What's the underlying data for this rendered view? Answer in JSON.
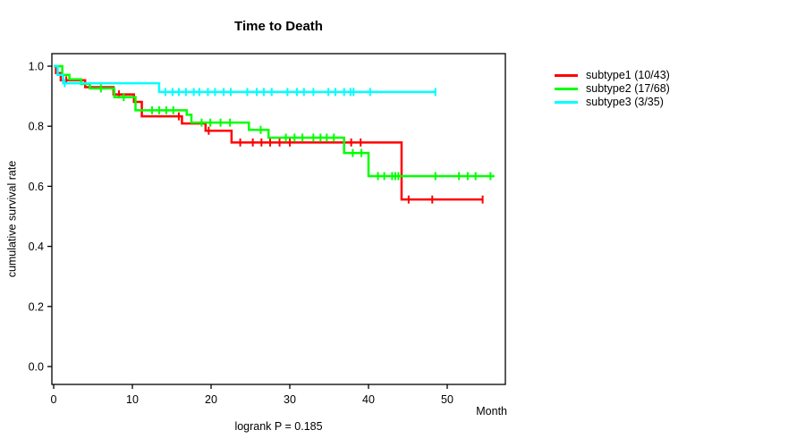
{
  "title": "Time to Death",
  "chart_data": {
    "type": "line",
    "subtype": "kaplan-meier-step-curves",
    "title": "Time to Death",
    "xlabel": "Month",
    "ylabel": "cumulative survival rate",
    "annotation": "logrank P = 0.185",
    "xlim": [
      0,
      57
    ],
    "ylim": [
      0.0,
      1.0
    ],
    "xticks": [
      "0",
      "10",
      "20",
      "30",
      "40",
      "50"
    ],
    "xtick_values": [
      0,
      10,
      20,
      30,
      40,
      50
    ],
    "yticks": [
      "0.0",
      "0.2",
      "0.4",
      "0.6",
      "0.8",
      "1.0"
    ],
    "ytick_values": [
      0.0,
      0.2,
      0.4,
      0.6,
      0.8,
      1.0
    ],
    "grid": false,
    "legend_position": "right-outside",
    "series": [
      {
        "name": "subtype1 (10/43)",
        "color": "#FF0000",
        "n": 43,
        "events": 10,
        "steps": [
          [
            0,
            1.0
          ],
          [
            0.3,
            0.977
          ],
          [
            0.9,
            0.953
          ],
          [
            4.0,
            0.93
          ],
          [
            7.6,
            0.906
          ],
          [
            10.2,
            0.881
          ],
          [
            11.2,
            0.833
          ],
          [
            16.3,
            0.809
          ],
          [
            19.3,
            0.785
          ],
          [
            22.6,
            0.746
          ],
          [
            44.2,
            0.556
          ]
        ],
        "end_time": 54.5,
        "censor_times": [
          1.6,
          8.3,
          15.9,
          19.7,
          23.7,
          25.3,
          26.4,
          27.5,
          28.7,
          30.0,
          37.8,
          39.0,
          45.1,
          48.1,
          54.5
        ]
      },
      {
        "name": "subtype2 (17/68)",
        "color": "#00FF00",
        "n": 68,
        "events": 17,
        "steps": [
          [
            0,
            1.0
          ],
          [
            1.1,
            0.971
          ],
          [
            2.0,
            0.956
          ],
          [
            3.5,
            0.941
          ],
          [
            4.6,
            0.926
          ],
          [
            7.7,
            0.897
          ],
          [
            10.4,
            0.853
          ],
          [
            16.9,
            0.838
          ],
          [
            17.5,
            0.812
          ],
          [
            24.8,
            0.788
          ],
          [
            27.3,
            0.762
          ],
          [
            36.9,
            0.711
          ],
          [
            40.0,
            0.634
          ]
        ],
        "end_time": 56.0,
        "censor_times": [
          6.0,
          8.9,
          12.5,
          13.4,
          14.3,
          15.2,
          18.8,
          19.9,
          21.2,
          22.4,
          26.3,
          29.5,
          30.6,
          31.6,
          33.0,
          33.9,
          34.7,
          35.6,
          38.0,
          39.1,
          41.2,
          42.0,
          43.0,
          43.4,
          43.8,
          48.5,
          51.5,
          52.6,
          53.6,
          55.5
        ]
      },
      {
        "name": "subtype3 (3/35)",
        "color": "#00FFFF",
        "n": 35,
        "events": 3,
        "steps": [
          [
            0,
            1.0
          ],
          [
            0.5,
            0.971
          ],
          [
            1.2,
            0.943
          ],
          [
            13.4,
            0.914
          ]
        ],
        "end_time": 48.6,
        "censor_times": [
          1.4,
          14.2,
          15.1,
          15.9,
          16.8,
          17.8,
          18.5,
          19.6,
          20.5,
          21.6,
          22.5,
          24.6,
          25.8,
          26.7,
          27.7,
          29.7,
          30.9,
          31.8,
          33.0,
          34.9,
          35.8,
          36.9,
          37.7,
          38.1,
          40.2,
          48.5
        ]
      }
    ]
  }
}
